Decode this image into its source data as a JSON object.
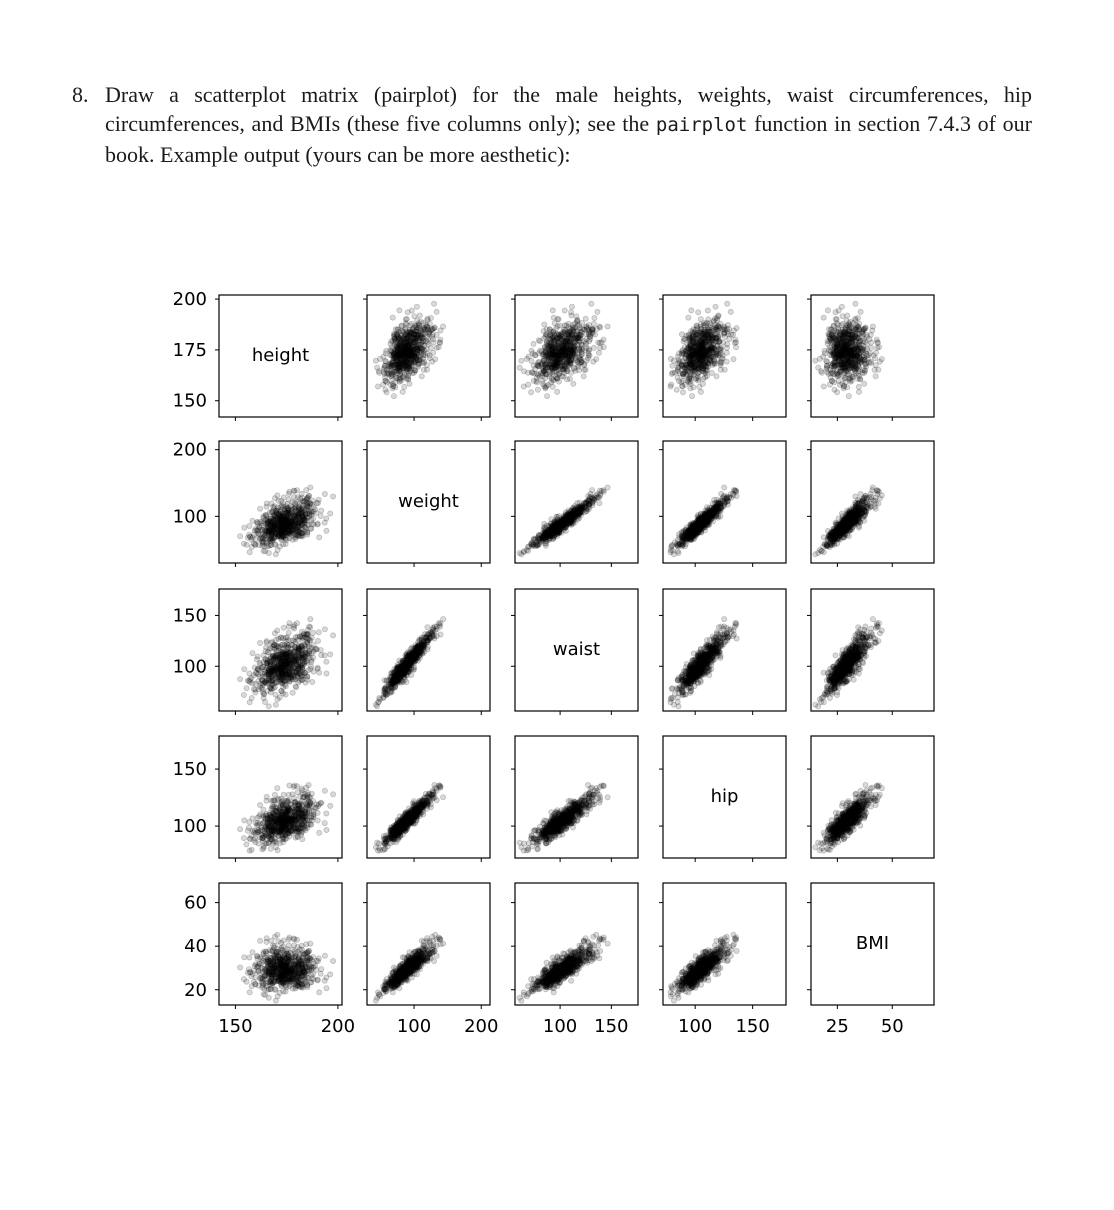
{
  "exercise": {
    "number": "8.",
    "text_before_code": "Draw a scatterplot matrix (pairplot) for the male heights, weights, waist circumferences, hip circumferences, and BMIs (these five columns only); see the ",
    "code": "pairplot",
    "text_after_code": " function in section 7.4.3 of our book. Example output (yours can be more aesthetic):"
  },
  "chart_data": {
    "type": "scatter",
    "layout": "pairplot 5x5 matrix, variable names on diagonal",
    "point_color": "#000000",
    "point_alpha": 0.15,
    "variables": [
      {
        "name": "height",
        "range": [
          142,
          202
        ],
        "ticks": [
          150,
          200
        ],
        "yticks": [
          150,
          175,
          200
        ]
      },
      {
        "name": "weight",
        "range": [
          30,
          213
        ],
        "ticks": [
          100,
          200
        ],
        "yticks": [
          100,
          200
        ]
      },
      {
        "name": "waist",
        "range": [
          56,
          176
        ],
        "ticks": [
          100,
          150
        ],
        "yticks": [
          100,
          150
        ]
      },
      {
        "name": "hip",
        "range": [
          72,
          179
        ],
        "ticks": [
          100,
          150
        ],
        "yticks": [
          100,
          150
        ]
      },
      {
        "name": "BMI",
        "range": [
          13,
          69
        ],
        "ticks": [
          25,
          50
        ],
        "yticks": [
          20,
          40,
          60
        ]
      }
    ]
  }
}
